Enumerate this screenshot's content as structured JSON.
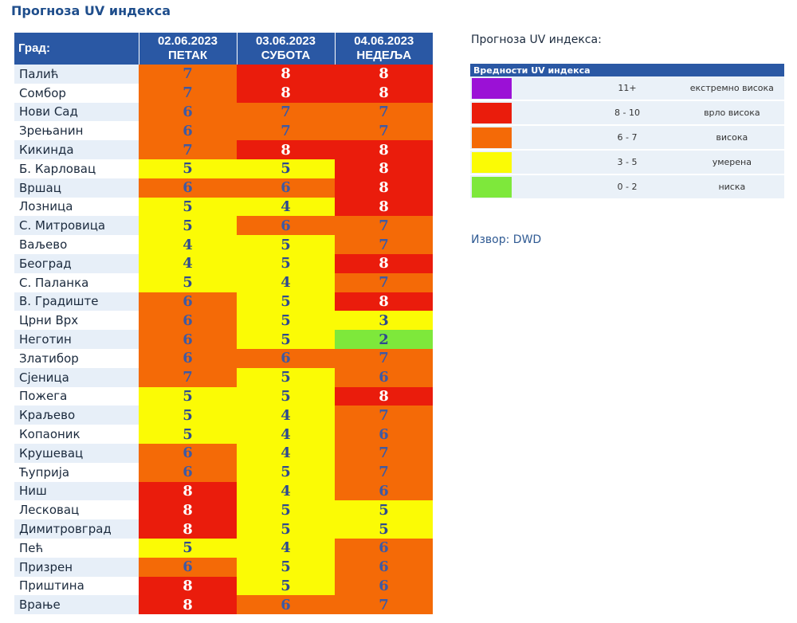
{
  "title": "Прогноза UV индекса",
  "table": {
    "city_header": "Град:",
    "days": [
      {
        "date": "02.06.2023",
        "day": "ПЕТАК"
      },
      {
        "date": "03.06.2023",
        "day": "СУБОТА"
      },
      {
        "date": "04.06.2023",
        "day": "НЕДЕЉА"
      }
    ],
    "rows": [
      {
        "city": "Палић",
        "values": [
          7,
          8,
          8
        ]
      },
      {
        "city": "Сомбор",
        "values": [
          7,
          8,
          8
        ]
      },
      {
        "city": "Нови Сад",
        "values": [
          6,
          7,
          7
        ]
      },
      {
        "city": "Зрењанин",
        "values": [
          6,
          7,
          7
        ]
      },
      {
        "city": "Кикинда",
        "values": [
          7,
          8,
          8
        ]
      },
      {
        "city": "Б. Карловац",
        "values": [
          5,
          5,
          8
        ]
      },
      {
        "city": "Вршац",
        "values": [
          6,
          6,
          8
        ]
      },
      {
        "city": "Лозница",
        "values": [
          5,
          4,
          8
        ]
      },
      {
        "city": "С. Митровица",
        "values": [
          5,
          6,
          7
        ]
      },
      {
        "city": "Ваљево",
        "values": [
          4,
          5,
          7
        ]
      },
      {
        "city": "Београд",
        "values": [
          4,
          5,
          8
        ]
      },
      {
        "city": "С. Паланка",
        "values": [
          5,
          4,
          7
        ]
      },
      {
        "city": "В. Градиште",
        "values": [
          6,
          5,
          8
        ]
      },
      {
        "city": "Црни Врх",
        "values": [
          6,
          5,
          3
        ]
      },
      {
        "city": "Неготин",
        "values": [
          6,
          5,
          2
        ]
      },
      {
        "city": "Златибор",
        "values": [
          6,
          6,
          7
        ]
      },
      {
        "city": "Сјеница",
        "values": [
          7,
          5,
          6
        ]
      },
      {
        "city": "Пожега",
        "values": [
          5,
          5,
          8
        ]
      },
      {
        "city": "Краљево",
        "values": [
          5,
          4,
          7
        ]
      },
      {
        "city": "Копаоник",
        "values": [
          5,
          4,
          6
        ]
      },
      {
        "city": "Крушевац",
        "values": [
          6,
          4,
          7
        ]
      },
      {
        "city": "Ћуприја",
        "values": [
          6,
          5,
          7
        ]
      },
      {
        "city": "Ниш",
        "values": [
          8,
          4,
          6
        ]
      },
      {
        "city": "Лесковац",
        "values": [
          8,
          5,
          5
        ]
      },
      {
        "city": "Димитровград",
        "values": [
          8,
          5,
          5
        ]
      },
      {
        "city": "Пећ",
        "values": [
          5,
          4,
          6
        ]
      },
      {
        "city": "Призрен",
        "values": [
          6,
          5,
          6
        ]
      },
      {
        "city": "Приштина",
        "values": [
          8,
          5,
          6
        ]
      },
      {
        "city": "Врање",
        "values": [
          8,
          6,
          7
        ]
      }
    ]
  },
  "legend": {
    "title": "Прогноза UV индекса:",
    "header": "Вредности UV индекса",
    "items": [
      {
        "range": "11+",
        "label": "екстремно висока",
        "color": "#9b11d6"
      },
      {
        "range": "8 - 10",
        "label": "врло висока",
        "color": "#ea1c0c"
      },
      {
        "range": "6 - 7",
        "label": "висока",
        "color": "#f46a07"
      },
      {
        "range": "3 - 5",
        "label": "умерена",
        "color": "#fbfb05"
      },
      {
        "range": "0 - 2",
        "label": "ниска",
        "color": "#7ee83b"
      }
    ]
  },
  "source": "Извор: DWD"
}
